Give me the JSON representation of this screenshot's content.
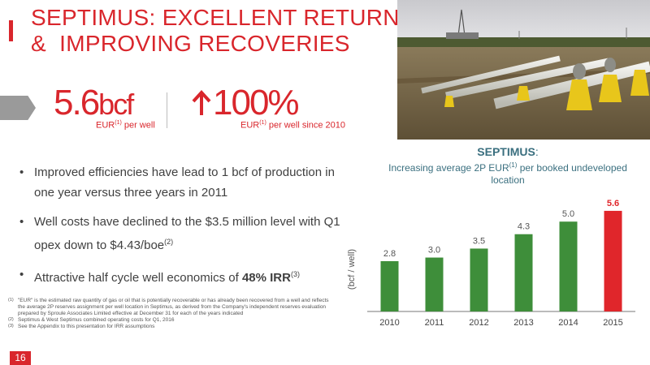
{
  "title_line1": "SEPTIMUS: EXCELLENT RETURNS",
  "title_line2": "&  IMPROVING RECOVERIES",
  "stat1": {
    "value": "5.6",
    "unit": "bcf",
    "label_pre": "EUR",
    "sup": "(1)",
    "label_post": " per well"
  },
  "stat2": {
    "value": "100%",
    "label_pre": "EUR",
    "sup": "(1)",
    "label_post": " per well since 2010"
  },
  "bullets": [
    {
      "text": "Improved efficiencies have lead to 1 bcf of production in one year versus three years in 2011"
    },
    {
      "text": "Well costs have declined to the $3.5 million level with Q1 opex down to $4.43/boe",
      "sup": "(2)"
    },
    {
      "text": "Attractive half cycle well economics of ",
      "bold": "48% IRR",
      "sup": "(3)"
    }
  ],
  "footnotes": [
    {
      "marker": "(1)",
      "text": "\"EUR\" is the estimated raw quantity of gas or oil that is potentially recoverable or has already been recovered from a well and reflects the average 2P reserves assignment per well location in Septimus, as derived from the Company's independent reserves evaluation prepared by Sproule Associates Limited effective at December 31 for each of the years indicated"
    },
    {
      "marker": "(2)",
      "text": "Septimus & West Septimus combined operating costs for Q1, 2016"
    },
    {
      "marker": "(3)",
      "text": "See the Appendix to this presentation for IRR assumptions"
    }
  ],
  "page_number": "16",
  "colors": {
    "accent": "#d9262c",
    "bar": "#3e8e3a",
    "highlight_bar": "#e0262b",
    "chart_title": "#3a6f7f"
  },
  "chart_data": {
    "type": "bar",
    "title": "SEPTIMUS",
    "title_suffix": ":",
    "subtitle_pre": "Increasing average 2P EUR",
    "subtitle_sup": "(1)",
    "subtitle_post": " per booked undeveloped location",
    "ylabel": "(bcf / well)",
    "categories": [
      "2010",
      "2011",
      "2012",
      "2013",
      "2014",
      "2015"
    ],
    "values": [
      2.8,
      3.0,
      3.5,
      4.3,
      5.0,
      5.6
    ],
    "value_labels": [
      "2.8",
      "3.0",
      "3.5",
      "4.3",
      "5.0",
      "5.6"
    ],
    "highlight_index": 5,
    "ylim": [
      0,
      6.5
    ],
    "grid": false,
    "legend": "none"
  }
}
